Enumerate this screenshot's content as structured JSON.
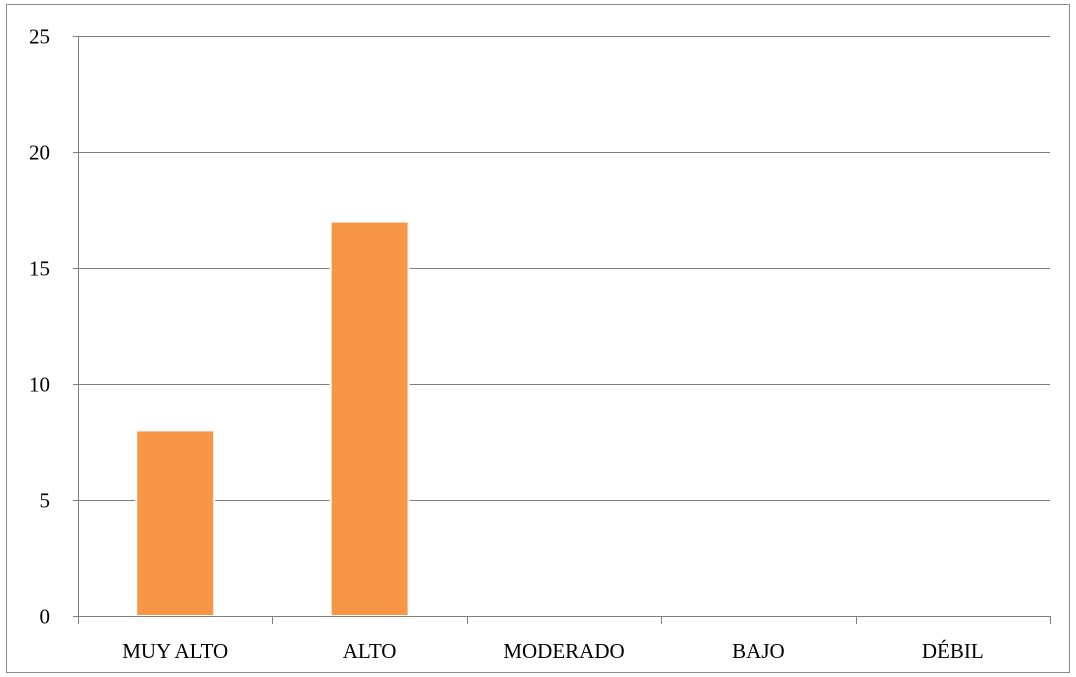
{
  "chart_data": {
    "type": "bar",
    "categories": [
      "MUY ALTO",
      "ALTO",
      "MODERADO",
      "BAJO",
      "DÉBIL"
    ],
    "values": [
      8,
      17,
      0,
      0,
      0
    ],
    "title": "",
    "xlabel": "",
    "ylabel": "",
    "ylim": [
      0,
      25
    ],
    "yticks": [
      "0",
      "5",
      "10",
      "15",
      "20",
      "25"
    ],
    "grid": true,
    "legend": "none",
    "colors": {
      "bar": "#F79646",
      "bar_edge": "#ffffff",
      "grid": "#7f7f7f"
    }
  }
}
